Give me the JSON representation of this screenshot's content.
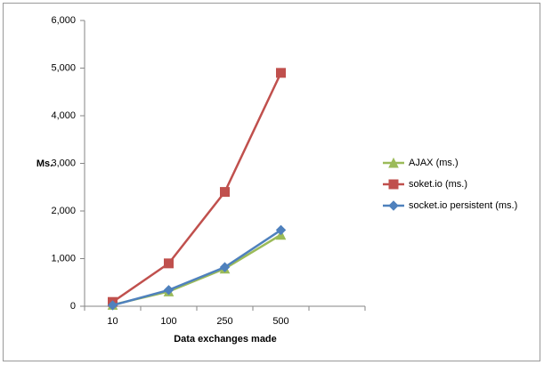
{
  "chart_data": {
    "type": "line",
    "y_label": "Ms.",
    "x_label": "Data exchanges made",
    "categories": [
      "10",
      "100",
      "250",
      "500",
      null
    ],
    "series": [
      {
        "name": "AJAX (ms.)",
        "color": "#9bbb59",
        "marker": "triangle",
        "values": [
          30,
          310,
          790,
          1500,
          null
        ]
      },
      {
        "name": "soket.io (ms.)",
        "color": "#c0504d",
        "marker": "square",
        "values": [
          90,
          900,
          2400,
          4900,
          null
        ]
      },
      {
        "name": "socket.io persistent (ms.)",
        "color": "#4f81bd",
        "marker": "diamond",
        "values": [
          20,
          340,
          820,
          1600,
          null
        ]
      }
    ],
    "ylim": [
      0,
      6000
    ],
    "yticks": [
      0,
      {
        "value": 1000,
        "label": "1,000"
      },
      {
        "value": 2000,
        "label": "2,000"
      },
      {
        "value": 3000,
        "label": "3,000"
      },
      {
        "value": 4000,
        "label": "4,000"
      },
      {
        "value": 5000,
        "label": "5,000"
      },
      {
        "value": 6000,
        "label": "6,000"
      }
    ],
    "grid": false,
    "legend": "right"
  }
}
